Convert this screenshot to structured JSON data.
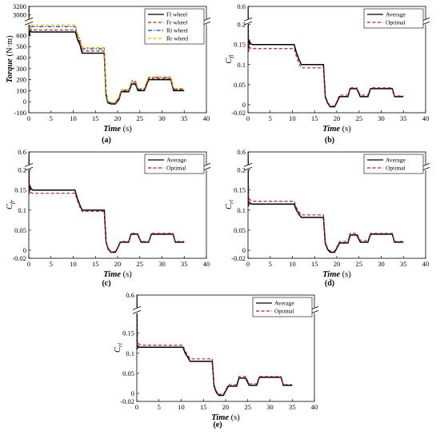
{
  "figure": {
    "panels": [
      {
        "id": "a",
        "label": "(a)",
        "xlabel_main": "Time",
        "xlabel_unit": " (s)",
        "ylabel_main": "Torque",
        "ylabel_unit": " (N·m)",
        "xticks": [
          "0",
          "5",
          "10",
          "15",
          "20",
          "25",
          "30",
          "35",
          "40"
        ],
        "yticks": [
          "3200",
          "3000",
          "600",
          "500",
          "400",
          "300",
          "200",
          "100",
          "0",
          "-100"
        ],
        "legend": [
          "Fl wheel",
          "Fr wheel",
          "Rl wheel",
          "Rr wheel"
        ]
      },
      {
        "id": "b",
        "label": "(b)",
        "xlabel_main": "Time",
        "xlabel_unit": " (s)",
        "ylabel_main": "C",
        "ylabel_sub": "fl",
        "xticks": [
          "0",
          "5",
          "10",
          "15",
          "20",
          "25",
          "30",
          "35",
          "40"
        ],
        "yticks": [
          "0.6",
          "0.2",
          "0.15",
          "0.1",
          "0.05",
          "0",
          "-0.02"
        ],
        "legend": [
          "Average",
          "Optimal"
        ]
      },
      {
        "id": "c",
        "label": "(c)",
        "xlabel_main": "Time",
        "xlabel_unit": " (s)",
        "ylabel_main": "C",
        "ylabel_sub": "fr",
        "xticks": [
          "0",
          "5",
          "10",
          "15",
          "20",
          "25",
          "30",
          "35",
          "40"
        ],
        "yticks": [
          "0.6",
          "0.2",
          "0.15",
          "0.1",
          "0.05",
          "0",
          "-0.02"
        ],
        "legend": [
          "Average",
          "Optimal"
        ]
      },
      {
        "id": "d",
        "label": "(d)",
        "xlabel_main": "Time",
        "xlabel_unit": " (s)",
        "ylabel_main": "C",
        "ylabel_sub": "rl",
        "xticks": [
          "0",
          "5",
          "10",
          "15",
          "20",
          "25",
          "30",
          "35",
          "40"
        ],
        "yticks": [
          "0.6",
          "0.2",
          "0.15",
          "0.1",
          "0.05",
          "0",
          "-0.02"
        ],
        "legend": [
          "Average",
          "Optimal"
        ]
      },
      {
        "id": "e",
        "label": "(e)",
        "xlabel_main": "Time",
        "xlabel_unit": " (s)",
        "ylabel_main": "C",
        "ylabel_sub": "rl",
        "xticks": [
          "0",
          "5",
          "10",
          "15",
          "20",
          "25",
          "30",
          "35",
          "40"
        ],
        "yticks": [
          "0.6",
          "0.15",
          "0.1",
          "0.05",
          "0",
          "-0.02"
        ],
        "legend": [
          "Average",
          "Optimal"
        ]
      }
    ]
  },
  "chart_data": [
    {
      "type": "line",
      "panel": "a",
      "xlabel": "Time (s)",
      "ylabel": "Torque (N·m)",
      "xlim": [
        0,
        40
      ],
      "ylim": [
        -100,
        3200
      ],
      "axis_break": [
        700,
        2900
      ],
      "legend_position": "top-right",
      "grid": false,
      "x": [
        0,
        0.15,
        0.3,
        0.6,
        1,
        10.5,
        11,
        11.5,
        12,
        17,
        17.4,
        17.8,
        18.5,
        19.5,
        20.3,
        20.8,
        21.5,
        22.5,
        23.2,
        24,
        24.6,
        25.3,
        26,
        27,
        27.6,
        28.3,
        29,
        32,
        32.6,
        33.5,
        34,
        35
      ],
      "series": [
        {
          "name": "Fl wheel",
          "color": "#000000",
          "style": "solid",
          "values": [
            3200,
            600,
            645,
            632,
            632,
            632,
            560,
            520,
            440,
            440,
            60,
            -10,
            -20,
            -20,
            20,
            90,
            90,
            90,
            160,
            160,
            100,
            100,
            100,
            200,
            200,
            200,
            200,
            200,
            100,
            100,
            100,
            100
          ]
        },
        {
          "name": "Fr wheel",
          "color": "#b22222",
          "style": "dashed",
          "values": [
            3200,
            620,
            665,
            650,
            650,
            650,
            580,
            540,
            460,
            460,
            80,
            -5,
            -15,
            -15,
            30,
            100,
            100,
            100,
            175,
            175,
            110,
            110,
            110,
            210,
            210,
            210,
            210,
            210,
            110,
            110,
            110,
            110
          ]
        },
        {
          "name": "Rl wheel",
          "color": "#1f3f99",
          "style": "dashdot",
          "values": [
            3200,
            630,
            690,
            680,
            680,
            680,
            600,
            560,
            480,
            480,
            90,
            0,
            -10,
            -10,
            40,
            105,
            105,
            105,
            185,
            185,
            115,
            115,
            115,
            220,
            220,
            220,
            220,
            220,
            115,
            115,
            115,
            115
          ]
        },
        {
          "name": "Rr wheel",
          "color": "#e0b400",
          "style": "dashed",
          "values": [
            3200,
            640,
            705,
            695,
            695,
            695,
            610,
            570,
            490,
            490,
            95,
            5,
            -5,
            -5,
            45,
            110,
            110,
            110,
            195,
            195,
            120,
            120,
            120,
            225,
            225,
            225,
            225,
            225,
            120,
            120,
            120,
            120
          ]
        }
      ]
    },
    {
      "type": "line",
      "panel": "b",
      "xlabel": "Time (s)",
      "ylabel": "C_fl",
      "xlim": [
        0,
        40
      ],
      "ylim": [
        -0.02,
        0.6
      ],
      "axis_break": [
        0.2,
        0.58
      ],
      "legend_position": "top-right",
      "grid": false,
      "x": [
        0,
        0.1,
        0.25,
        0.6,
        1,
        10.4,
        10.9,
        11.6,
        12,
        17,
        17.4,
        17.9,
        18.5,
        19.5,
        20,
        20.6,
        21.5,
        22.5,
        23,
        23.6,
        24.5,
        25.3,
        26,
        27,
        27.6,
        28.3,
        29,
        32.5,
        33,
        33.6,
        34.5,
        35
      ],
      "series": [
        {
          "name": "Average",
          "color": "#000000",
          "style": "solid",
          "values": [
            0.6,
            0.14,
            0.16,
            0.152,
            0.15,
            0.15,
            0.13,
            0.11,
            0.1,
            0.1,
            0.02,
            0.005,
            -0.005,
            -0.005,
            0.005,
            0.02,
            0.02,
            0.02,
            0.04,
            0.04,
            0.04,
            0.02,
            0.02,
            0.02,
            0.04,
            0.04,
            0.04,
            0.04,
            0.02,
            0.02,
            0.02,
            0.02
          ]
        },
        {
          "name": "Optimal",
          "color": "#b22222",
          "style": "dashed",
          "values": [
            0.6,
            0.13,
            0.145,
            0.14,
            0.14,
            0.14,
            0.12,
            0.1,
            0.092,
            0.092,
            0.024,
            0.008,
            -0.003,
            -0.003,
            0.008,
            0.024,
            0.024,
            0.024,
            0.042,
            0.042,
            0.042,
            0.024,
            0.024,
            0.024,
            0.042,
            0.042,
            0.042,
            0.042,
            0.022,
            0.022,
            0.022,
            0.022
          ]
        }
      ]
    },
    {
      "type": "line",
      "panel": "c",
      "xlabel": "Time (s)",
      "ylabel": "C_fr",
      "xlim": [
        0,
        40
      ],
      "ylim": [
        -0.02,
        0.6
      ],
      "axis_break": [
        0.2,
        0.58
      ],
      "legend_position": "top-right",
      "grid": false,
      "x": [
        0,
        0.1,
        0.25,
        0.6,
        1,
        10.4,
        10.9,
        11.6,
        12,
        17,
        17.4,
        17.9,
        18.5,
        19.5,
        20,
        20.6,
        21.5,
        22.5,
        23,
        23.6,
        24.5,
        25.3,
        26,
        27,
        27.6,
        28.3,
        29,
        32.5,
        33,
        33.6,
        34.5,
        35
      ],
      "series": [
        {
          "name": "Average",
          "color": "#000000",
          "style": "solid",
          "values": [
            0.6,
            0.145,
            0.16,
            0.152,
            0.15,
            0.15,
            0.13,
            0.11,
            0.1,
            0.1,
            0.02,
            0.003,
            -0.005,
            -0.005,
            0.005,
            0.02,
            0.02,
            0.02,
            0.04,
            0.04,
            0.04,
            0.02,
            0.02,
            0.02,
            0.04,
            0.04,
            0.04,
            0.04,
            0.02,
            0.02,
            0.02,
            0.02
          ]
        },
        {
          "name": "Optimal",
          "color": "#b22222",
          "style": "dashed",
          "values": [
            0.6,
            0.14,
            0.148,
            0.143,
            0.142,
            0.142,
            0.125,
            0.105,
            0.097,
            0.097,
            0.022,
            0.005,
            -0.003,
            -0.003,
            0.007,
            0.022,
            0.022,
            0.022,
            0.042,
            0.042,
            0.042,
            0.022,
            0.022,
            0.022,
            0.042,
            0.042,
            0.042,
            0.042,
            0.022,
            0.022,
            0.022,
            0.022
          ]
        }
      ]
    },
    {
      "type": "line",
      "panel": "d",
      "xlabel": "Time (s)",
      "ylabel": "C_rl",
      "xlim": [
        0,
        40
      ],
      "ylim": [
        -0.02,
        0.6
      ],
      "axis_break": [
        0.2,
        0.58
      ],
      "legend_position": "top-right",
      "grid": false,
      "x": [
        0,
        0.1,
        0.25,
        0.6,
        1,
        10.4,
        10.9,
        11.6,
        12,
        17,
        17.4,
        17.9,
        18.5,
        19.5,
        20,
        20.6,
        21.5,
        22.5,
        23,
        23.6,
        24.5,
        25.3,
        26,
        27,
        27.6,
        28.3,
        29,
        32.5,
        33,
        33.6,
        34.5,
        35
      ],
      "series": [
        {
          "name": "Average",
          "color": "#000000",
          "style": "solid",
          "values": [
            0.6,
            0.11,
            0.12,
            0.116,
            0.115,
            0.115,
            0.1,
            0.088,
            0.082,
            0.082,
            0.018,
            0.003,
            -0.005,
            -0.005,
            0.005,
            0.018,
            0.018,
            0.018,
            0.038,
            0.038,
            0.038,
            0.02,
            0.02,
            0.02,
            0.04,
            0.04,
            0.04,
            0.04,
            0.02,
            0.02,
            0.02,
            0.02
          ]
        },
        {
          "name": "Optimal",
          "color": "#b22222",
          "style": "dashed",
          "values": [
            0.6,
            0.115,
            0.128,
            0.124,
            0.122,
            0.122,
            0.106,
            0.094,
            0.088,
            0.088,
            0.022,
            0.006,
            -0.002,
            -0.002,
            0.008,
            0.022,
            0.022,
            0.022,
            0.042,
            0.042,
            0.042,
            0.024,
            0.024,
            0.024,
            0.042,
            0.042,
            0.042,
            0.042,
            0.022,
            0.022,
            0.022,
            0.022
          ]
        }
      ]
    },
    {
      "type": "line",
      "panel": "e",
      "xlabel": "Time (s)",
      "ylabel": "C_rl",
      "xlim": [
        0,
        40
      ],
      "ylim": [
        -0.02,
        0.6
      ],
      "axis_break": [
        0.2,
        0.58
      ],
      "legend_position": "top-right",
      "grid": false,
      "x": [
        0,
        0.1,
        0.25,
        0.6,
        1,
        10.4,
        10.9,
        11.6,
        12,
        17,
        17.4,
        17.9,
        18.5,
        19.5,
        20,
        20.6,
        21.5,
        22.5,
        23,
        23.6,
        24.5,
        25.3,
        26,
        27,
        27.6,
        28.3,
        29,
        32.5,
        33,
        33.6,
        34.5,
        35
      ],
      "series": [
        {
          "name": "Average",
          "color": "#000000",
          "style": "solid",
          "values": [
            0.6,
            0.11,
            0.118,
            0.115,
            0.115,
            0.115,
            0.1,
            0.088,
            0.08,
            0.08,
            0.018,
            0.003,
            -0.005,
            -0.005,
            0.005,
            0.018,
            0.018,
            0.018,
            0.038,
            0.038,
            0.038,
            0.02,
            0.02,
            0.02,
            0.04,
            0.04,
            0.04,
            0.04,
            0.02,
            0.02,
            0.02,
            0.02
          ]
        },
        {
          "name": "Optimal",
          "color": "#b22222",
          "style": "dashed",
          "values": [
            0.6,
            0.115,
            0.126,
            0.122,
            0.12,
            0.12,
            0.105,
            0.094,
            0.086,
            0.086,
            0.022,
            0.006,
            -0.002,
            -0.002,
            0.008,
            0.022,
            0.022,
            0.022,
            0.042,
            0.042,
            0.042,
            0.024,
            0.024,
            0.024,
            0.042,
            0.042,
            0.042,
            0.042,
            0.022,
            0.022,
            0.022,
            0.022
          ]
        }
      ]
    }
  ]
}
